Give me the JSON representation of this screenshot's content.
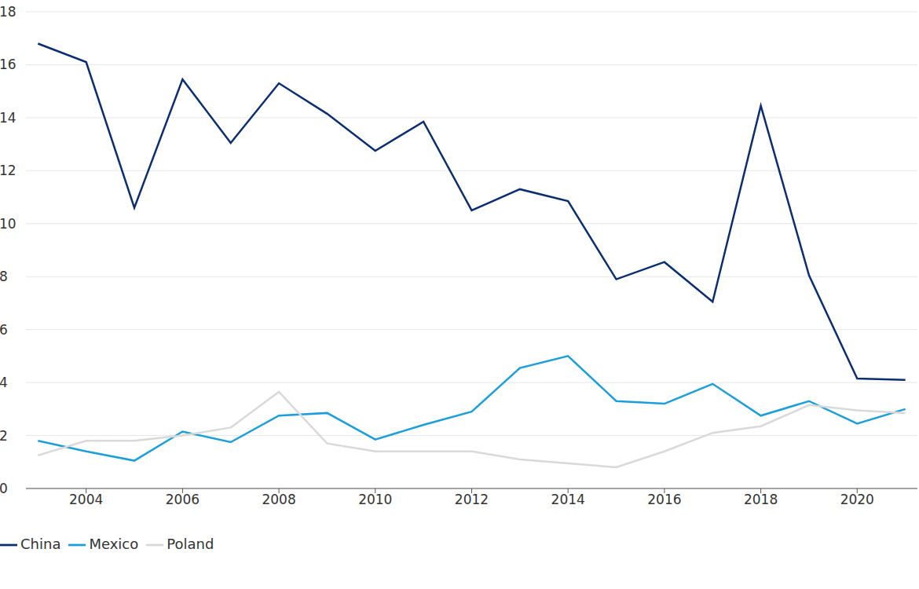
{
  "chart_data": {
    "type": "line",
    "x": [
      2003,
      2004,
      2005,
      2006,
      2007,
      2008,
      2009,
      2010,
      2011,
      2012,
      2013,
      2014,
      2015,
      2016,
      2017,
      2018,
      2019,
      2020,
      2021
    ],
    "series": [
      {
        "name": "China",
        "color": "#0b2d71",
        "values": [
          16.8,
          16.1,
          10.6,
          15.45,
          13.05,
          15.3,
          14.15,
          12.75,
          13.85,
          10.5,
          11.3,
          10.85,
          7.9,
          8.55,
          7.05,
          14.45,
          8.05,
          4.15,
          4.1
        ]
      },
      {
        "name": "Mexico",
        "color": "#1a9fdb",
        "values": [
          1.8,
          1.4,
          1.05,
          2.15,
          1.75,
          2.75,
          2.85,
          1.85,
          2.4,
          2.9,
          4.55,
          5.0,
          3.3,
          3.2,
          3.95,
          2.75,
          3.3,
          2.45,
          3.0
        ]
      },
      {
        "name": "Poland",
        "color": "#d9d9d9",
        "values": [
          1.25,
          1.8,
          1.8,
          2.0,
          2.3,
          3.65,
          1.7,
          1.4,
          1.4,
          1.4,
          1.1,
          0.95,
          0.8,
          1.4,
          2.1,
          2.35,
          3.15,
          2.95,
          2.85
        ]
      }
    ],
    "xlim": [
      2002.75,
      2021.25
    ],
    "xticks": [
      2004,
      2006,
      2008,
      2010,
      2012,
      2014,
      2016,
      2018,
      2020
    ],
    "ylim": [
      0,
      18
    ],
    "yticks": [
      0,
      2,
      4,
      6,
      8,
      10,
      12,
      14,
      16,
      18
    ],
    "grid": true,
    "legend": "bottom-left"
  }
}
